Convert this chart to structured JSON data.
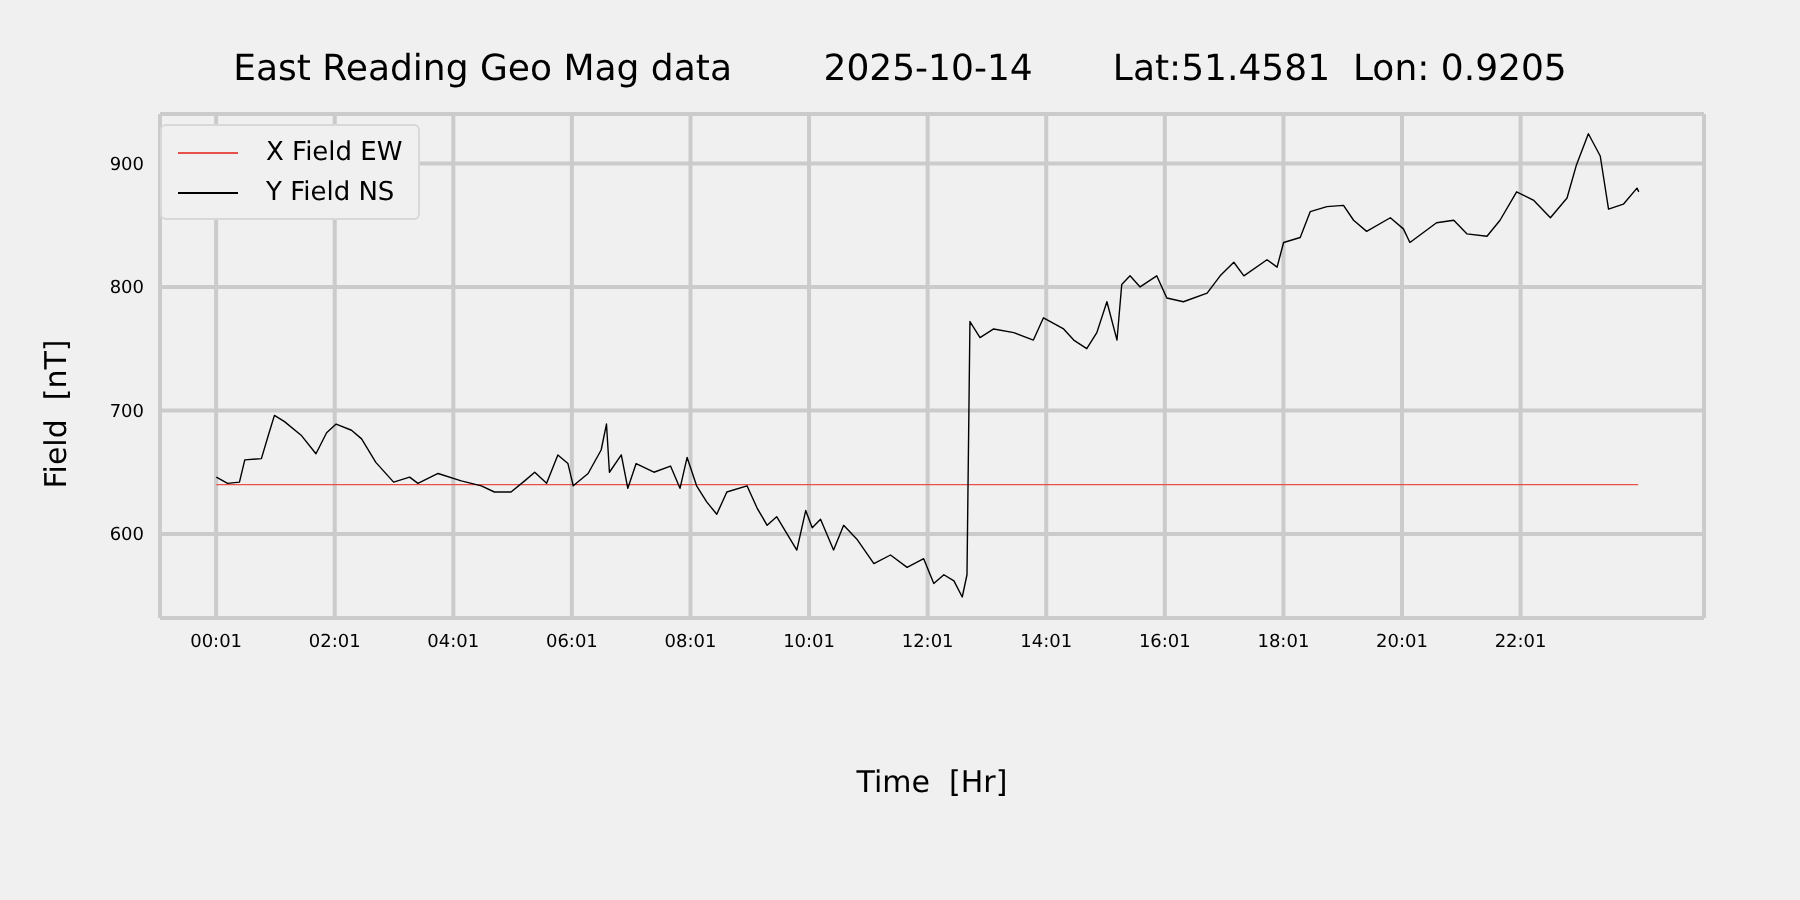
{
  "chart_data": {
    "type": "line",
    "title": "East Reading Geo Mag data        2025-10-14       Lat:51.4581  Lon: 0.9205",
    "xlabel": "Time  [Hr]",
    "ylabel": "Field  [nT]",
    "xlim": [
      -0.93,
      25.11
    ],
    "xticks": [
      {
        "value": 0.0167,
        "label": "00:01"
      },
      {
        "value": 2.0167,
        "label": "02:01"
      },
      {
        "value": 4.0167,
        "label": "04:01"
      },
      {
        "value": 6.0167,
        "label": "06:01"
      },
      {
        "value": 8.0167,
        "label": "08:01"
      },
      {
        "value": 10.0167,
        "label": "10:01"
      },
      {
        "value": 12.0167,
        "label": "12:01"
      },
      {
        "value": 14.0167,
        "label": "14:01"
      },
      {
        "value": 16.0167,
        "label": "16:01"
      },
      {
        "value": 18.0167,
        "label": "18:01"
      },
      {
        "value": 20.0167,
        "label": "20:01"
      },
      {
        "value": 22.0167,
        "label": "22:01"
      }
    ],
    "ylim": [
      532,
      940
    ],
    "yticks": [
      600,
      700,
      800,
      900
    ],
    "grid": true,
    "legend": "top left",
    "marker": "none",
    "line_style": "solid",
    "series": [
      {
        "name": "X Field EW",
        "color": "#e8504a",
        "x": [
          0.02,
          24.0
        ],
        "values": [
          640,
          640
        ]
      },
      {
        "name": "Y Field NS",
        "color": "#000000",
        "x": [
          0.02,
          0.21,
          0.41,
          0.5,
          0.78,
          0.91,
          1.0,
          1.17,
          1.45,
          1.7,
          1.88,
          2.04,
          2.3,
          2.47,
          2.71,
          3.01,
          3.28,
          3.42,
          3.76,
          4.15,
          4.49,
          4.71,
          4.99,
          5.22,
          5.39,
          5.59,
          5.78,
          5.95,
          6.04,
          6.29,
          6.51,
          6.6,
          6.65,
          6.85,
          6.96,
          7.1,
          7.4,
          7.68,
          7.84,
          7.96,
          8.12,
          8.29,
          8.46,
          8.63,
          8.97,
          9.14,
          9.31,
          9.47,
          9.81,
          9.96,
          10.07,
          10.21,
          10.43,
          10.6,
          10.82,
          11.11,
          11.39,
          11.67,
          11.95,
          12.12,
          12.29,
          12.46,
          12.6,
          12.68,
          12.73,
          12.9,
          13.13,
          13.47,
          13.8,
          13.97,
          14.31,
          14.48,
          14.7,
          14.87,
          15.04,
          15.21,
          15.29,
          15.43,
          15.6,
          15.88,
          16.05,
          16.33,
          16.73,
          16.95,
          17.18,
          17.35,
          17.74,
          17.91,
          18.02,
          18.3,
          18.47,
          18.75,
          19.03,
          19.2,
          19.42,
          19.82,
          20.04,
          20.15,
          20.6,
          20.89,
          21.11,
          21.45,
          21.67,
          21.95,
          22.24,
          22.52,
          22.8,
          22.96,
          23.16,
          23.36,
          23.5,
          23.75,
          23.98,
          24.01
        ],
        "values": [
          646,
          641,
          642,
          660,
          661,
          682,
          696,
          691,
          680,
          665,
          682,
          689,
          684,
          677,
          658,
          642,
          646,
          641,
          649,
          643,
          639,
          634,
          634,
          643,
          650,
          641,
          664,
          657,
          639,
          649,
          668,
          689,
          650,
          664,
          637,
          657,
          650,
          655,
          637,
          662,
          639,
          626,
          616,
          634,
          639,
          621,
          607,
          614,
          587,
          619,
          605,
          612,
          587,
          607,
          596,
          576,
          583,
          573,
          580,
          560,
          567,
          562,
          549,
          567,
          772,
          759,
          766,
          763,
          757,
          775,
          766,
          757,
          750,
          763,
          788,
          757,
          802,
          809,
          800,
          809,
          791,
          788,
          795,
          809,
          820,
          809,
          822,
          816,
          836,
          840,
          861,
          865,
          866,
          854,
          845,
          856,
          847,
          836,
          852,
          854,
          843,
          841,
          854,
          877,
          870,
          856,
          872,
          899,
          924,
          906,
          863,
          867,
          880,
          877
        ]
      }
    ]
  }
}
